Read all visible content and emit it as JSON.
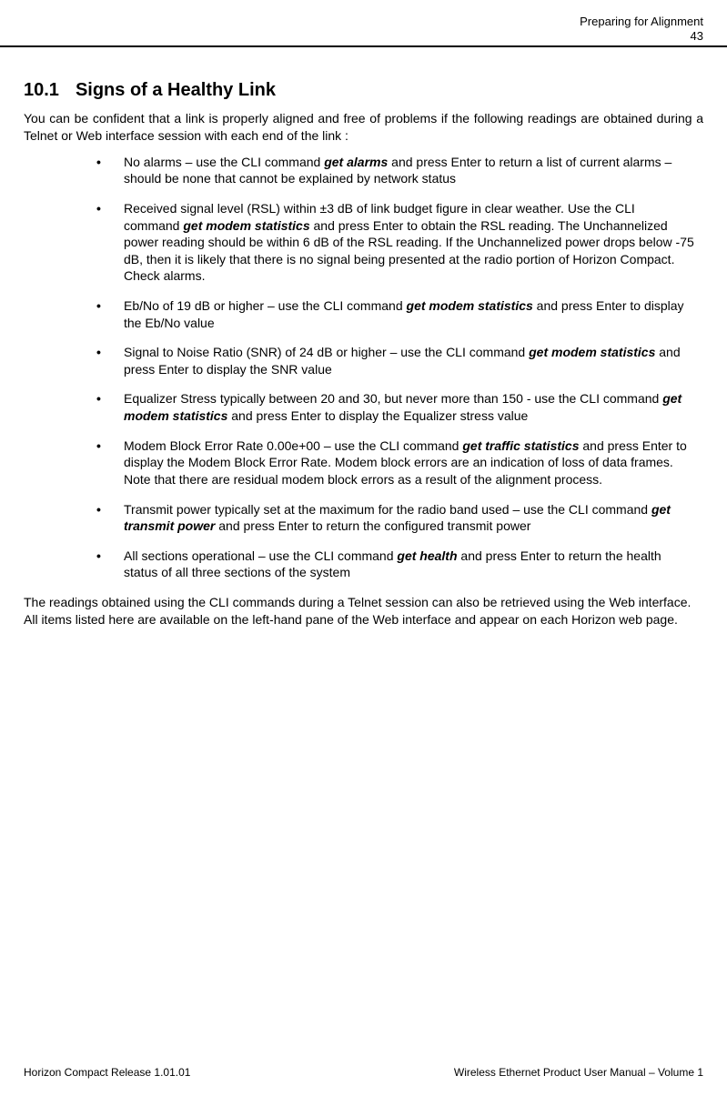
{
  "header": {
    "title": "Preparing for Alignment",
    "page_number": "43"
  },
  "section": {
    "number": "10.1",
    "title": "Signs of a Healthy Link"
  },
  "intro": "You can be confident that a link is properly aligned and free of problems if the following  readings are obtained during a Telnet or Web interface session with each end of the link :",
  "bullets": [
    {
      "pre": "No alarms – use the CLI command ",
      "cmd": "get alarms",
      "post": " and press Enter to return a list of current alarms – should be none that cannot be explained by network status"
    },
    {
      "pre": "Received signal level (RSL) within ±3 dB of link budget figure in clear weather. Use the CLI command ",
      "cmd": "get modem statistics",
      "post": " and press Enter to obtain the RSL reading.   The Unchannelized power reading should be within 6 dB of the RSL reading.  If the Unchannelized power drops below -75 dB, then it is likely that there is no signal being presented at the radio portion of Horizon Compact. Check alarms."
    },
    {
      "pre": "Eb/No of 19 dB or higher – use the CLI command ",
      "cmd": "get modem statistics",
      "post": " and press Enter to display the Eb/No value"
    },
    {
      "pre": "Signal to Noise Ratio (SNR) of 24 dB or higher – use the CLI command ",
      "cmd": "get modem statistics",
      "post": " and press Enter to display the SNR value"
    },
    {
      "pre": "Equalizer Stress typically between 20 and 30, but never more than 150 - use the CLI command ",
      "cmd": "get modem statistics",
      "post": " and press Enter to display the Equalizer stress value"
    },
    {
      "pre": "Modem Block Error Rate 0.00e+00 – use the CLI command ",
      "cmd": "get traffic statistics",
      "post": " and press Enter to display the Modem Block Error Rate.  Modem block errors are an indication of loss of data frames.  Note that there are residual modem block errors as a result of the alignment process."
    },
    {
      "pre": "Transmit power typically set at the maximum for the radio band used – use the CLI command ",
      "cmd": "get transmit power",
      "post": " and press Enter to return the configured transmit power"
    },
    {
      "pre": "All sections operational – use the CLI command ",
      "cmd": "get health",
      "post": " and press Enter to return the health status of all three sections of the system"
    }
  ],
  "closing": "The readings obtained using the CLI commands during a Telnet session can also be retrieved using the Web interface. All items listed here are available on the left-hand pane of the Web interface and appear on each Horizon web page.",
  "footer": {
    "left": "Horizon Compact Release 1.01.01",
    "right": "Wireless Ethernet Product User Manual – Volume 1"
  }
}
